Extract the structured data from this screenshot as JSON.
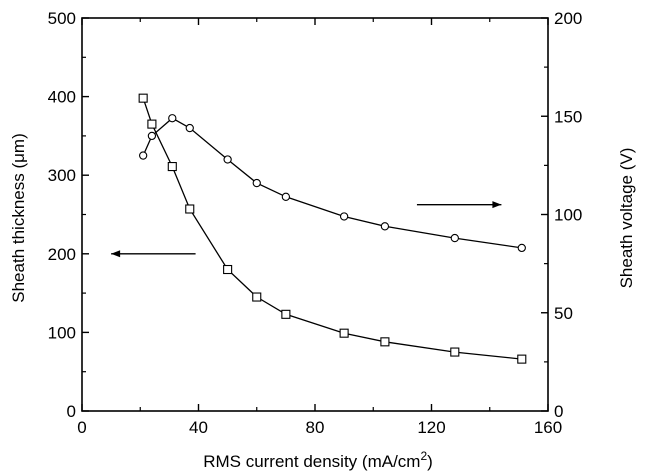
{
  "chart_data": {
    "type": "line",
    "title": "",
    "xlabel": "RMS current density (mA/cm",
    "xlabel_sup": "2",
    "xlabel_close": ")",
    "ylabel_left": "Sheath thickness (μm)",
    "ylabel_right": "Sheath voltage (V)",
    "xlim": [
      0,
      160
    ],
    "ylim_left": [
      0,
      500
    ],
    "ylim_right": [
      0,
      200
    ],
    "x_ticks": [
      "0",
      "40",
      "80",
      "120",
      "160"
    ],
    "y_left_ticks": [
      "0",
      "100",
      "200",
      "300",
      "400",
      "500"
    ],
    "y_right_ticks": [
      "0",
      "50",
      "100",
      "150",
      "200"
    ],
    "grid": false,
    "series": [
      {
        "axis": "left",
        "marker": "square",
        "x": [
          21,
          24,
          31,
          37,
          50,
          60,
          70,
          90,
          104,
          128,
          151
        ],
        "y": [
          398,
          365,
          311,
          257,
          180,
          145,
          123,
          99,
          88,
          75,
          66
        ]
      },
      {
        "axis": "right",
        "marker": "circle",
        "x": [
          21,
          24,
          31,
          37,
          50,
          60,
          70,
          90,
          104,
          128,
          151
        ],
        "y": [
          130,
          140,
          149,
          144,
          128,
          116,
          109,
          99,
          94,
          88,
          83
        ]
      }
    ],
    "annotations": [
      {
        "type": "arrow",
        "direction": "left",
        "axis": "left",
        "x_from": 39,
        "x_to": 10,
        "y": 200
      },
      {
        "type": "arrow",
        "direction": "right",
        "axis": "right",
        "x_from": 115,
        "x_to": 144,
        "y": 105
      }
    ]
  }
}
